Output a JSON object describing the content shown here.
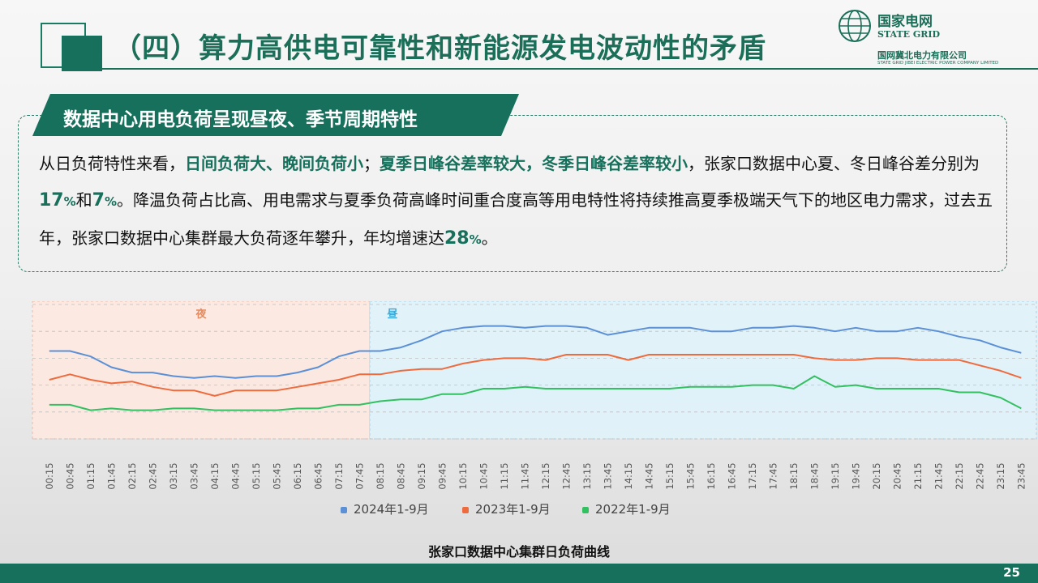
{
  "header": {
    "title": "（四）算力高供电可靠性和新能源发电波动性的矛盾",
    "logo_cn": "国家电网",
    "logo_en": "STATE GRID",
    "logo_sub_cn": "国网冀北电力有限公司",
    "logo_sub_en": "STATE GRID JIBEI ELECTRIC POWER COMPANY LIMITED"
  },
  "callout": {
    "heading": "数据中心用电负荷呈现昼夜、季节周期特性",
    "p1_a": "从日负荷特性来看，",
    "p1_hl1": "日间负荷大、晚间负荷小",
    "p1_b": "；",
    "p1_hl2": "夏季日峰谷差率较大，冬季日峰谷差率较小",
    "p1_c": "，张家口数据中心夏、冬日峰谷差分别为",
    "n1": "17",
    "pct1": "%",
    "p1_d": "和",
    "n2": "7",
    "pct2": "%",
    "p1_e": "。降温负荷占比高、用电需求与夏季负荷高峰时间重合度高等用电特性将持续推高夏季极端天气下的地区电力需求，过去五年，张家口数据中心集群最大负荷逐年攀升，年均增速达",
    "n3": "28",
    "pct3": "%",
    "p1_f": "。"
  },
  "chart_data": {
    "type": "line",
    "x": [
      "00:15",
      "00:45",
      "01:15",
      "01:45",
      "02:15",
      "02:45",
      "03:15",
      "03:45",
      "04:15",
      "04:45",
      "05:15",
      "05:45",
      "06:15",
      "06:45",
      "07:15",
      "07:45",
      "08:15",
      "08:45",
      "09:15",
      "09:45",
      "10:15",
      "10:45",
      "11:15",
      "11:45",
      "12:15",
      "12:45",
      "13:15",
      "13:45",
      "14:15",
      "14:45",
      "15:15",
      "15:45",
      "16:15",
      "16:45",
      "17:15",
      "17:45",
      "18:15",
      "18:45",
      "19:15",
      "19:45",
      "20:15",
      "20:45",
      "21:15",
      "21:45",
      "22:15",
      "22:45",
      "23:15",
      "23:45"
    ],
    "series": [
      {
        "name": "2024年1-9月",
        "color": "#5b8fd6",
        "values": [
          59,
          59,
          56,
          50,
          47,
          47,
          45,
          44,
          45,
          44,
          45,
          45,
          47,
          50,
          56,
          59,
          59,
          61,
          65,
          70,
          72,
          73,
          73,
          72,
          73,
          73,
          72,
          68,
          70,
          72,
          72,
          72,
          70,
          70,
          72,
          72,
          73,
          72,
          70,
          72,
          70,
          70,
          72,
          70,
          67,
          65,
          61,
          58
        ]
      },
      {
        "name": "2023年1-9月",
        "color": "#ee6b3e",
        "values": [
          43,
          46,
          43,
          41,
          42,
          39,
          37,
          37,
          34,
          37,
          37,
          37,
          39,
          41,
          43,
          46,
          46,
          48,
          49,
          49,
          52,
          54,
          55,
          55,
          54,
          57,
          57,
          57,
          54,
          57,
          57,
          57,
          57,
          57,
          57,
          57,
          57,
          55,
          54,
          54,
          55,
          55,
          54,
          54,
          54,
          51,
          48,
          44
        ]
      },
      {
        "name": "2022年1-9月",
        "color": "#33c060",
        "values": [
          29,
          29,
          26,
          27,
          26,
          26,
          27,
          27,
          26,
          26,
          26,
          26,
          27,
          27,
          29,
          29,
          31,
          32,
          32,
          35,
          35,
          38,
          38,
          39,
          38,
          38,
          38,
          38,
          38,
          38,
          38,
          39,
          39,
          39,
          40,
          40,
          38,
          45,
          39,
          40,
          38,
          38,
          38,
          38,
          36,
          36,
          33,
          27
        ]
      }
    ],
    "bands": [
      {
        "label": "夜",
        "from": "00:15",
        "to": "07:45"
      },
      {
        "label": "昼",
        "from": "08:15",
        "to": "23:45"
      }
    ],
    "ylim": [
      10,
      85
    ],
    "grid": true,
    "legend_position": "bottom",
    "caption": "张家口数据中心集群日负荷曲线"
  },
  "footer": {
    "page": "25"
  }
}
